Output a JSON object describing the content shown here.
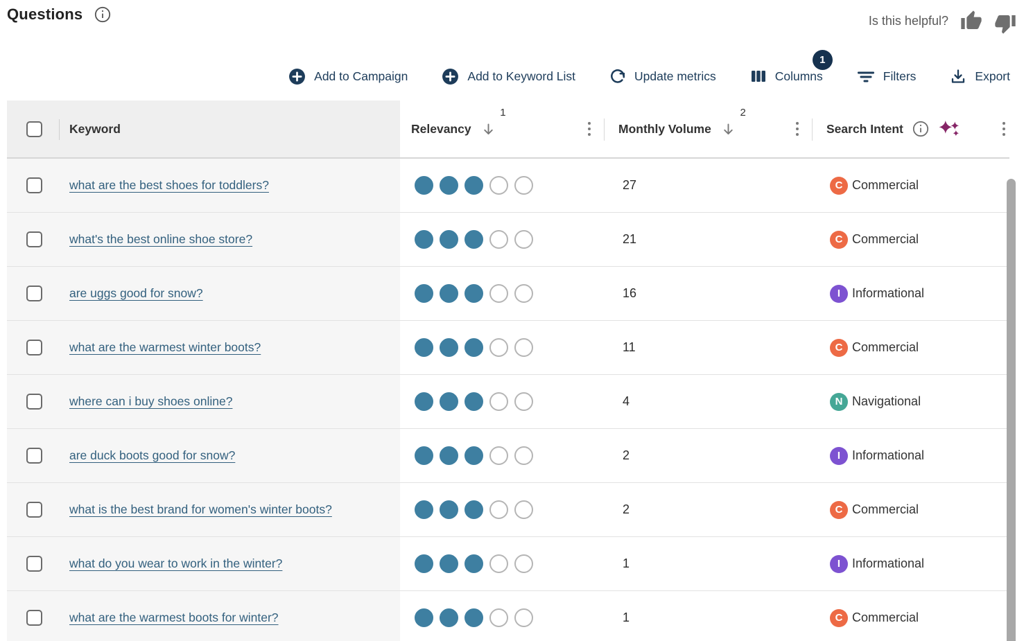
{
  "page": {
    "title": "Questions",
    "feedback_label": "Is this helpful?"
  },
  "toolbar": {
    "add_to_campaign": "Add to Campaign",
    "add_to_keyword_list": "Add to Keyword List",
    "update_metrics": "Update metrics",
    "columns": "Columns",
    "columns_badge": "1",
    "filters": "Filters",
    "export": "Export"
  },
  "table": {
    "headers": {
      "keyword": "Keyword",
      "relevancy": "Relevancy",
      "relevancy_sort_rank": "1",
      "monthly_volume": "Monthly Volume",
      "volume_sort_rank": "2",
      "search_intent": "Search Intent"
    },
    "rows": [
      {
        "keyword": "what are the best shoes for toddlers?",
        "relevancy": 3,
        "relevancy_max": 5,
        "monthly_volume": "27",
        "intent": "Commercial"
      },
      {
        "keyword": "what's the best online shoe store?",
        "relevancy": 3,
        "relevancy_max": 5,
        "monthly_volume": "21",
        "intent": "Commercial"
      },
      {
        "keyword": "are uggs good for snow?",
        "relevancy": 3,
        "relevancy_max": 5,
        "monthly_volume": "16",
        "intent": "Informational"
      },
      {
        "keyword": "what are the warmest winter boots?",
        "relevancy": 3,
        "relevancy_max": 5,
        "monthly_volume": "11",
        "intent": "Commercial"
      },
      {
        "keyword": "where can i buy shoes online?",
        "relevancy": 3,
        "relevancy_max": 5,
        "monthly_volume": "4",
        "intent": "Navigational"
      },
      {
        "keyword": "are duck boots good for snow?",
        "relevancy": 3,
        "relevancy_max": 5,
        "monthly_volume": "2",
        "intent": "Informational"
      },
      {
        "keyword": "what is the best brand for women's winter boots?",
        "relevancy": 3,
        "relevancy_max": 5,
        "monthly_volume": "2",
        "intent": "Commercial"
      },
      {
        "keyword": "what do you wear to work in the winter?",
        "relevancy": 3,
        "relevancy_max": 5,
        "monthly_volume": "1",
        "intent": "Informational"
      },
      {
        "keyword": "what are the warmest boots for winter?",
        "relevancy": 3,
        "relevancy_max": 5,
        "monthly_volume": "1",
        "intent": "Commercial"
      }
    ]
  },
  "intent_types": {
    "Commercial": {
      "letter": "C",
      "color": "#ed6a45"
    },
    "Informational": {
      "letter": "I",
      "color": "#7d52d1"
    },
    "Navigational": {
      "letter": "N",
      "color": "#45a796"
    }
  },
  "icons": {
    "info-icon": "circled-i",
    "thumb-up-icon": "solid thumbs up",
    "thumb-down-icon": "solid thumbs down",
    "plus-circle-icon": "filled circle plus",
    "refresh-icon": "circular arrow",
    "columns-icon": "three vertical bars",
    "filter-icon": "three stacked lines",
    "export-icon": "download arrow into tray",
    "kebab-icon": "three vertical dots",
    "sort-desc-icon": "down arrow",
    "sparkles-icon": "three four-point stars"
  },
  "colors": {
    "accent_navy": "#1d3c5a",
    "badge_navy": "#16324f",
    "link_blue": "#33607e",
    "relevancy_dot": "#3e7fa1",
    "intent_commercial": "#ed6a45",
    "intent_informational": "#7d52d1",
    "intent_navigational": "#45a796",
    "sparkles_magenta": "#862567",
    "header_gray": "#efefef",
    "keyword_col_gray": "#f6f6f6",
    "scrollbar_gray": "#a8a8a8"
  }
}
